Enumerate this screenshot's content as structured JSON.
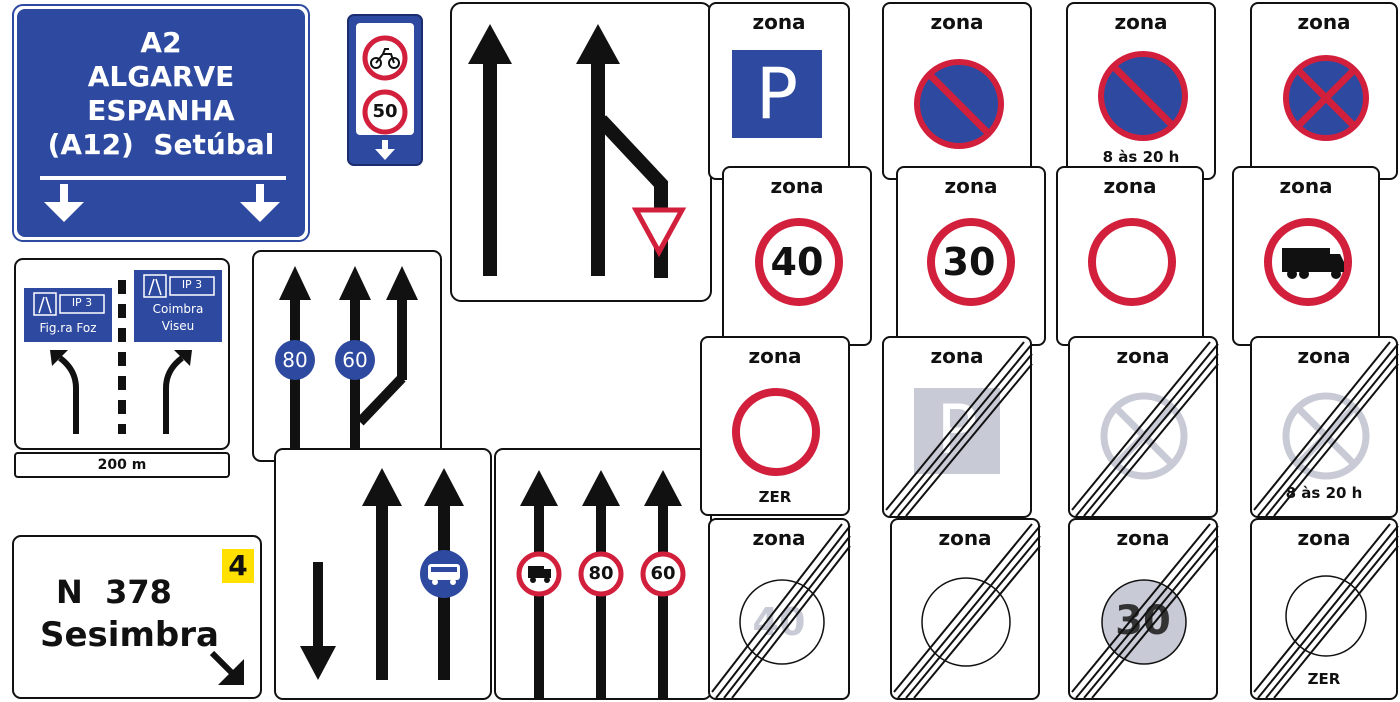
{
  "a2_sign": {
    "lines": [
      "A2",
      "ALGARVE",
      "ESPANHA",
      "(A12)  Setúbal"
    ]
  },
  "moto_sign": {
    "speed": "50"
  },
  "ip3_sign": {
    "left_route": "IP 3",
    "left_dest": "Fig.ra Foz",
    "right_route": "IP 3",
    "right_dest_1": "Coimbra",
    "right_dest_2": "Viseu",
    "distance": "200 m"
  },
  "lanes_8060": {
    "left_speed": "80",
    "right_speed": "60"
  },
  "lanes_truck": {
    "speed_1": "80",
    "speed_2": "60"
  },
  "n378_sign": {
    "road": "N  378",
    "dest": "Sesimbra",
    "badge": "4"
  },
  "zone_label": "zona",
  "zone_signs": {
    "parking": {
      "letter": "P"
    },
    "no_parking_hours": {
      "hours": "8 às 20 h"
    },
    "speed_40": {
      "value": "40"
    },
    "speed_30": {
      "value": "30"
    },
    "zer": {
      "text": "ZER"
    },
    "end_parking": {
      "letter": "P"
    },
    "end_no_stop_hours": {
      "hours": "8 às 20 h"
    },
    "end_40": {
      "value": "40"
    },
    "end_30": {
      "value": "30"
    },
    "end_zer": {
      "text": "ZER"
    }
  },
  "colors": {
    "blue": "#2e4aa0",
    "red": "#d11f3c",
    "yellow": "#ffe000",
    "grey": "#c8cad6"
  }
}
